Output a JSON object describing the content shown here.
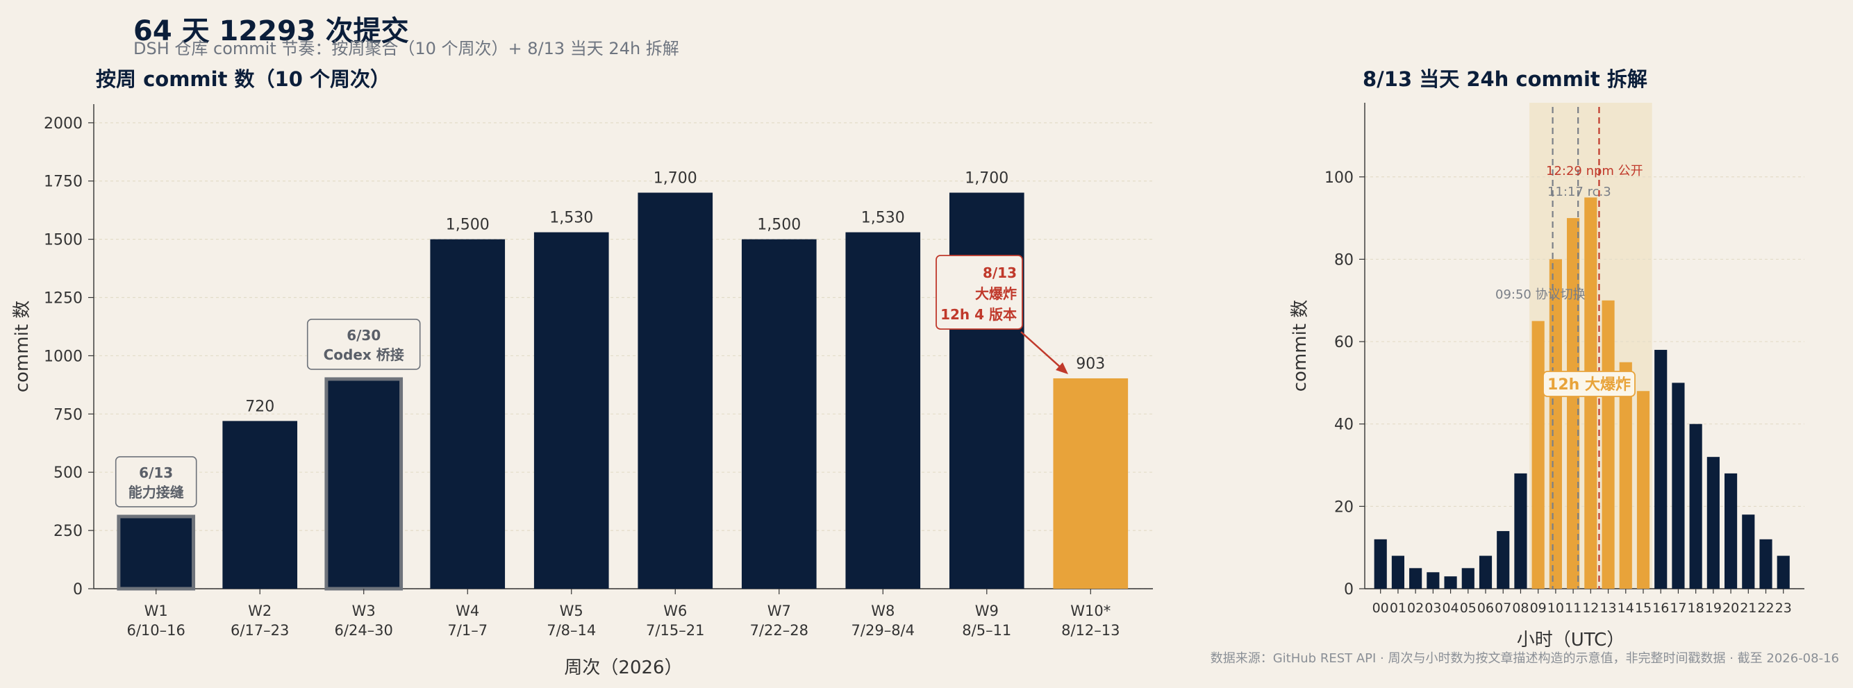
{
  "page": {
    "title": "64 天 12293 次提交",
    "subtitle": "DSH 仓库 commit 节奏：按周聚合（10 个周次）+ 8/13 当天 24h 拆解",
    "footer": "数据来源：GitHub REST API · 周次与小时数为按文章描述构造的示意值，非完整时间戳数据 · 截至 2026-08-16"
  },
  "colors": {
    "navy": "#0b1e3a",
    "orange": "#e8a33a",
    "red": "#c0392b",
    "gray": "#7a7f87",
    "bg": "#f5f0e8"
  },
  "chart_data": [
    {
      "type": "bar",
      "title": "按周 commit 数（10 个周次）",
      "xlabel": "周次（2026）",
      "ylabel": "commit 数",
      "ylim": [
        0,
        2080
      ],
      "yticks": [
        0,
        250,
        500,
        750,
        1000,
        1250,
        1500,
        1750,
        2000
      ],
      "grid": true,
      "categories": [
        "W1",
        "W2",
        "W3",
        "W4",
        "W5",
        "W6",
        "W7",
        "W8",
        "W9",
        "W10*"
      ],
      "date_ranges": [
        "6/10–16",
        "6/17–23",
        "6/24–30",
        "7/1–7",
        "7/8–14",
        "7/15–21",
        "7/22–28",
        "7/29–8/4",
        "8/5–11",
        "8/12–13"
      ],
      "values": [
        310,
        720,
        900,
        1500,
        1530,
        1700,
        1500,
        1530,
        1700,
        903
      ],
      "value_labels": [
        "",
        "720",
        "",
        "1,500",
        "1,530",
        "1,700",
        "1,500",
        "1,530",
        "1,700",
        "903"
      ],
      "outlined": [
        0,
        2
      ],
      "highlighted": [
        9
      ],
      "annotations": [
        {
          "bar": 0,
          "lines": [
            "6/13",
            "能力接缝"
          ]
        },
        {
          "bar": 2,
          "lines": [
            "6/30",
            "Codex 桥接"
          ]
        },
        {
          "bar": 9,
          "lines": [
            "8/13",
            "大爆炸",
            "12h 4 版本"
          ],
          "arrow": true
        }
      ]
    },
    {
      "type": "bar",
      "title": "8/13 当天 24h commit 拆解",
      "xlabel": "小时（UTC）",
      "ylabel": "commit 数",
      "ylim": [
        0,
        118
      ],
      "yticks": [
        0,
        20,
        40,
        60,
        80,
        100
      ],
      "grid": true,
      "categories": [
        "00",
        "01",
        "02",
        "03",
        "04",
        "05",
        "06",
        "07",
        "08",
        "09",
        "10",
        "11",
        "12",
        "13",
        "14",
        "15",
        "16",
        "17",
        "18",
        "19",
        "20",
        "21",
        "22",
        "23"
      ],
      "values": [
        12,
        8,
        5,
        4,
        3,
        5,
        8,
        14,
        28,
        65,
        80,
        90,
        95,
        70,
        55,
        48,
        58,
        50,
        40,
        32,
        28,
        18,
        12,
        8
      ],
      "highlight_hours": [
        9,
        10,
        11,
        12,
        13,
        14,
        15
      ],
      "highlight_label": "12h 大爆炸",
      "events": [
        {
          "hour": 9.83,
          "label": "09:50 协议切换",
          "color": "gray"
        },
        {
          "hour": 11.28,
          "label": "11:17 rc.3",
          "color": "gray"
        },
        {
          "hour": 12.48,
          "label": "12:29 npm 公开",
          "color": "red"
        }
      ]
    }
  ]
}
